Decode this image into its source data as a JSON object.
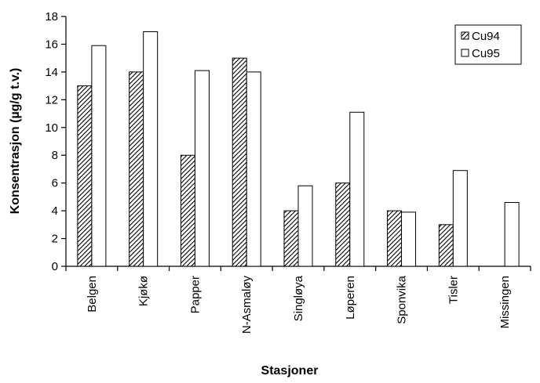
{
  "chart_data": {
    "type": "bar",
    "categories": [
      "Belgen",
      "Kjøkø",
      "Papper",
      "N-Asmaløy",
      "Singløya",
      "Løperen",
      "Sponvika",
      "Tisler",
      "Missingen"
    ],
    "series": [
      {
        "name": "Cu94",
        "values": [
          13,
          14,
          8,
          15,
          4,
          6,
          4,
          3,
          null
        ],
        "color": "#000000",
        "pattern": "hatched"
      },
      {
        "name": "Cu95",
        "values": [
          15.9,
          16.9,
          14.1,
          14.0,
          5.8,
          11.1,
          3.9,
          6.9,
          4.6
        ],
        "color": "#ffffff",
        "pattern": "solid"
      }
    ],
    "xlabel": "Stasjoner",
    "ylabel": "Konsentrasjon (µg/g t.v.)",
    "ylim": [
      0,
      18
    ],
    "yticks": [
      "0",
      "2",
      "4",
      "6",
      "8",
      "10",
      "12",
      "14",
      "16",
      "18"
    ],
    "grid": false,
    "legend_position": "top-right"
  }
}
